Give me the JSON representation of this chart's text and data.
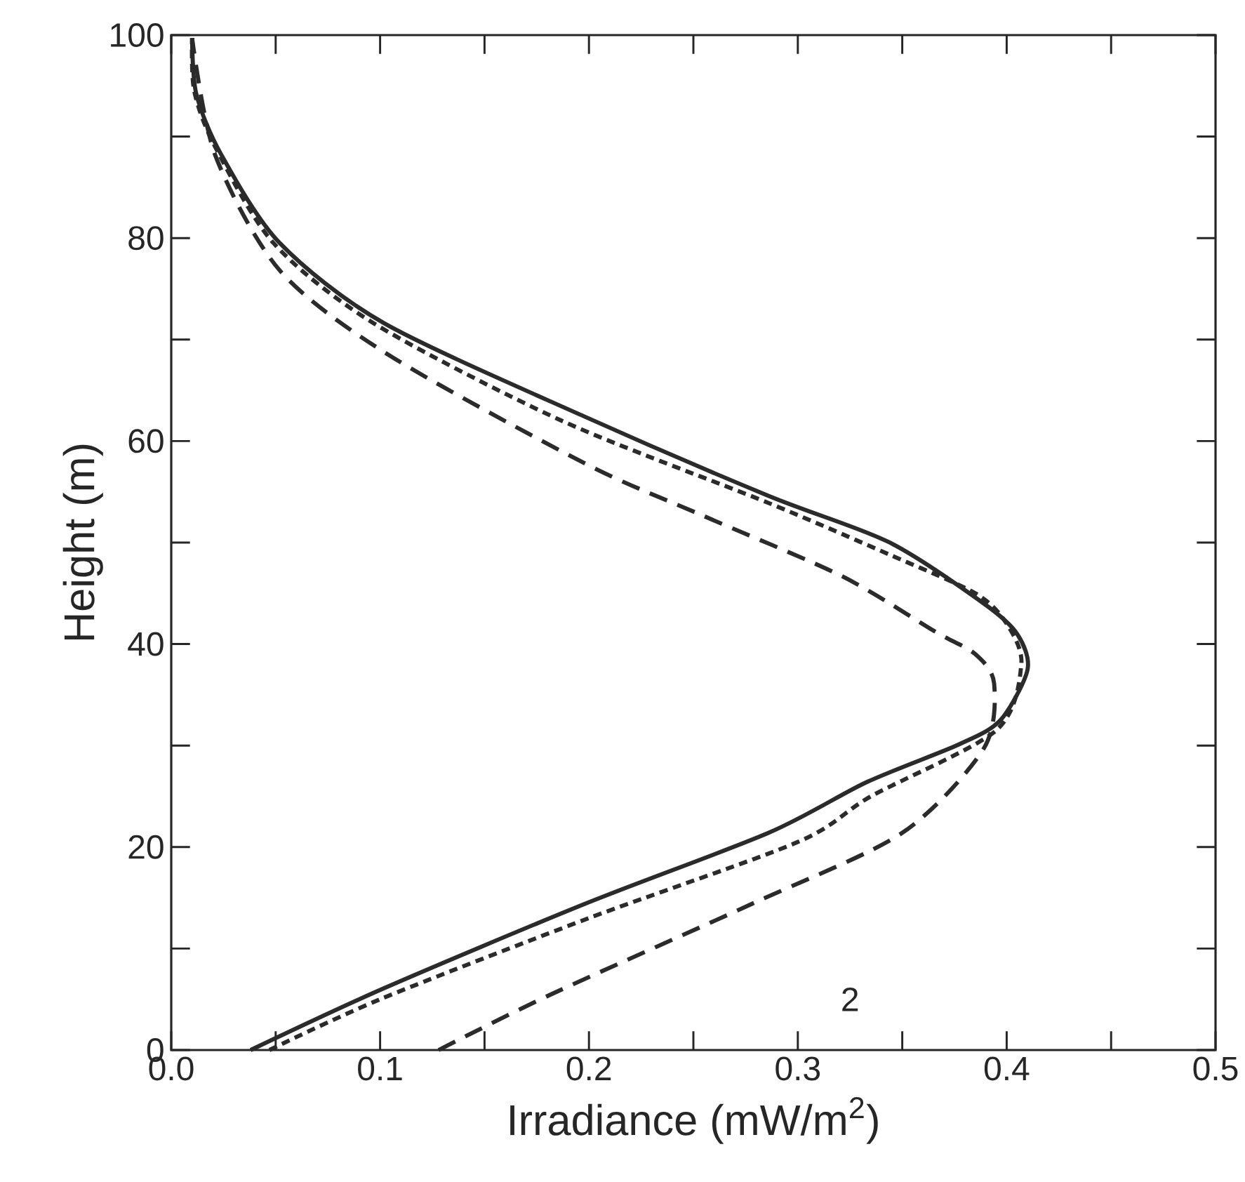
{
  "chart_data": {
    "type": "line",
    "xlabel": "Irradiance (mW/m$^{2}$)",
    "ylabel": "Height (m)",
    "xlim": [
      0,
      0.5
    ],
    "ylim": [
      0,
      100
    ],
    "xticks": [
      {
        "value": 0,
        "label": "0.0"
      },
      {
        "value": 0.05,
        "label": null
      },
      0.1,
      {
        "value": 0.15,
        "label": null
      },
      0.2,
      {
        "value": 0.25,
        "label": null
      },
      0.3,
      {
        "value": 0.35,
        "label": null
      },
      0.4,
      {
        "value": 0.45,
        "label": null
      },
      0.5
    ],
    "yticks": [
      0,
      {
        "value": 10,
        "label": null
      },
      20,
      {
        "value": 30,
        "label": null
      },
      40,
      {
        "value": 50,
        "label": null
      },
      60,
      {
        "value": 70,
        "label": null
      },
      80,
      {
        "value": 90,
        "label": null
      },
      100
    ],
    "grid": false,
    "marker": "none",
    "series": [
      {
        "color": "#2b2b2b",
        "line_style": "solid",
        "x": [
          0.038,
          0.102,
          0.198,
          0.286,
          0.333,
          0.377,
          0.397,
          0.41,
          0.405,
          0.389,
          0.344,
          0.286,
          0.198,
          0.102,
          0.052,
          0.024,
          0.012,
          0.01
        ],
        "values": [
          0,
          6.1,
          14.4,
          21.4,
          26.4,
          30.1,
          32.5,
          37.5,
          41,
          44,
          50,
          54.6,
          62.4,
          71.6,
          79.5,
          88.2,
          94.2,
          99.7
        ]
      },
      {
        "color": "#2b2b2b",
        "line_style": "dotted",
        "x": [
          0.047,
          0.1,
          0.2,
          0.3,
          0.335,
          0.395,
          0.407,
          0.4,
          0.385,
          0.344,
          0.286,
          0.187,
          0.097,
          0.049,
          0.021,
          0.011,
          0.01
        ],
        "values": [
          0,
          5,
          13,
          20.5,
          25,
          31.5,
          38,
          42,
          45,
          48.8,
          53.9,
          62,
          71.6,
          79.5,
          89,
          94.5,
          99.7
        ]
      },
      {
        "color": "#2b2b2b",
        "line_style": "dashed",
        "x": [
          0.128,
          0.182,
          0.278,
          0.35,
          0.389,
          0.394,
          0.385,
          0.366,
          0.321,
          0.254,
          0.198,
          0.104,
          0.052,
          0.021,
          0.01
        ],
        "values": [
          0,
          5.5,
          14.4,
          21.4,
          29.7,
          36.1,
          39,
          41.2,
          46.7,
          52.7,
          57.8,
          68.5,
          76.8,
          88.2,
          99.7
        ]
      }
    ],
    "annotations": [
      "2"
    ]
  }
}
